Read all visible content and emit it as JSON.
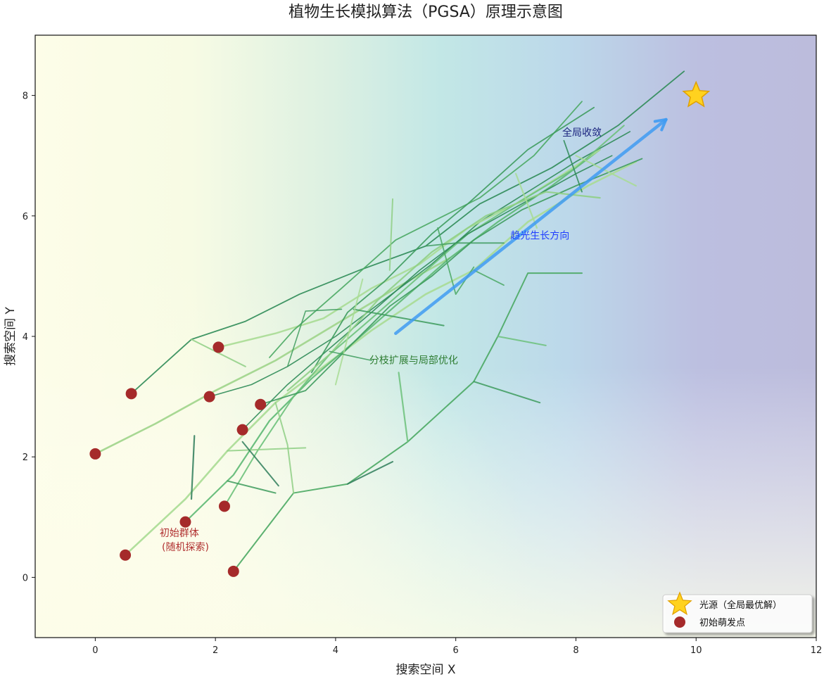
{
  "chart_data": {
    "type": "line",
    "title": "植物生长模拟算法（PGSA）原理示意图",
    "xlabel": "搜索空间 X",
    "ylabel": "搜索空间 Y",
    "xlim": [
      -1,
      12
    ],
    "ylim": [
      -1,
      9
    ],
    "xticks": [
      "0",
      "2",
      "4",
      "6",
      "8",
      "10",
      "12"
    ],
    "yticks": [
      "0",
      "2",
      "4",
      "6",
      "8"
    ],
    "xtick_values": [
      0,
      2,
      4,
      6,
      8,
      10,
      12
    ],
    "ytick_values": [
      0,
      2,
      4,
      6,
      8
    ],
    "grid": false,
    "legend_position": "bottom-right",
    "legend": [
      {
        "label": "光源（全局最优解）",
        "marker": "star",
        "color": "#FFD21F"
      },
      {
        "label": "初始萌发点",
        "marker": "circle",
        "color": "#A52A2A"
      }
    ],
    "light_source": {
      "x": 10,
      "y": 8
    },
    "seeds": [
      {
        "x": 0.0,
        "y": 2.05
      },
      {
        "x": 0.6,
        "y": 3.05
      },
      {
        "x": 0.5,
        "y": 0.37
      },
      {
        "x": 1.5,
        "y": 0.92
      },
      {
        "x": 1.9,
        "y": 3.0
      },
      {
        "x": 2.05,
        "y": 3.82
      },
      {
        "x": 2.15,
        "y": 1.18
      },
      {
        "x": 2.3,
        "y": 0.1
      },
      {
        "x": 2.45,
        "y": 2.45
      },
      {
        "x": 2.75,
        "y": 2.87
      }
    ],
    "branches": [
      {
        "points": [
          [
            0.0,
            2.05
          ],
          [
            1.0,
            2.55
          ],
          [
            2.0,
            3.1
          ],
          [
            3.0,
            3.6
          ],
          [
            4.0,
            4.2
          ],
          [
            5.0,
            4.8
          ],
          [
            5.9,
            5.3
          ]
        ],
        "color": "#9ed48a",
        "width": 2.6
      },
      {
        "points": [
          [
            0.6,
            3.05
          ],
          [
            1.6,
            3.95
          ],
          [
            2.5,
            4.25
          ],
          [
            3.4,
            4.7
          ],
          [
            4.4,
            5.1
          ],
          [
            5.5,
            5.5
          ],
          [
            6.4,
            6.2
          ],
          [
            7.6,
            6.8
          ],
          [
            8.7,
            7.5
          ],
          [
            9.8,
            8.4
          ]
        ],
        "color": "#2e8b57",
        "width": 1.8
      },
      {
        "points": [
          [
            0.5,
            0.37
          ],
          [
            1.5,
            1.3
          ],
          [
            2.2,
            2.1
          ],
          [
            3.0,
            2.9
          ],
          [
            3.8,
            3.5
          ],
          [
            4.6,
            4.1
          ],
          [
            5.5,
            4.7
          ],
          [
            6.3,
            5.1
          ],
          [
            7.2,
            5.9
          ],
          [
            8.2,
            6.5
          ],
          [
            9.0,
            6.9
          ]
        ],
        "color": "#a8dc94",
        "width": 2.6
      },
      {
        "points": [
          [
            1.5,
            0.92
          ],
          [
            2.3,
            1.7
          ],
          [
            2.9,
            2.6
          ],
          [
            3.6,
            3.3
          ],
          [
            4.3,
            3.9
          ],
          [
            5.1,
            4.6
          ],
          [
            5.9,
            5.3
          ],
          [
            6.7,
            5.9
          ],
          [
            7.6,
            6.5
          ],
          [
            8.4,
            7.1
          ]
        ],
        "color": "#5cb873",
        "width": 2.2
      },
      {
        "points": [
          [
            1.9,
            3.0
          ],
          [
            2.6,
            3.2
          ],
          [
            3.2,
            3.5
          ],
          [
            4.0,
            4.0
          ],
          [
            4.8,
            4.6
          ],
          [
            5.6,
            5.2
          ],
          [
            6.4,
            5.9
          ],
          [
            7.2,
            6.4
          ],
          [
            8.0,
            6.9
          ],
          [
            8.9,
            7.4
          ]
        ],
        "color": "#2e8b57",
        "width": 1.6
      },
      {
        "points": [
          [
            2.05,
            3.82
          ],
          [
            3.0,
            4.05
          ],
          [
            3.8,
            4.3
          ],
          [
            4.6,
            4.8
          ],
          [
            5.4,
            5.2
          ],
          [
            6.2,
            5.8
          ],
          [
            7.0,
            6.2
          ],
          [
            7.8,
            6.7
          ],
          [
            8.4,
            7.1
          ]
        ],
        "color": "#a8dc94",
        "width": 2.4
      },
      {
        "points": [
          [
            2.15,
            1.18
          ],
          [
            2.7,
            2.1
          ],
          [
            3.3,
            3.0
          ],
          [
            3.9,
            3.7
          ],
          [
            4.6,
            4.3
          ],
          [
            5.4,
            5.0
          ],
          [
            6.2,
            5.7
          ],
          [
            7.0,
            6.2
          ],
          [
            8.0,
            6.8
          ],
          [
            8.8,
            7.5
          ]
        ],
        "color": "#6cc17a",
        "width": 2.0
      },
      {
        "points": [
          [
            2.3,
            0.1
          ],
          [
            3.3,
            1.4
          ],
          [
            4.2,
            1.55
          ],
          [
            5.2,
            2.25
          ],
          [
            6.3,
            3.25
          ],
          [
            6.7,
            4.0
          ],
          [
            7.2,
            5.05
          ],
          [
            8.1,
            5.05
          ]
        ],
        "color": "#4aa863",
        "width": 2.0
      },
      {
        "points": [
          [
            2.45,
            2.45
          ],
          [
            3.2,
            3.2
          ],
          [
            3.9,
            3.8
          ],
          [
            4.6,
            4.4
          ],
          [
            5.4,
            5.1
          ],
          [
            6.2,
            5.7
          ],
          [
            7.1,
            6.2
          ],
          [
            8.0,
            6.7
          ],
          [
            8.6,
            7.0
          ]
        ],
        "color": "#2e8b57",
        "width": 1.6
      },
      {
        "points": [
          [
            2.75,
            2.87
          ],
          [
            3.5,
            3.1
          ],
          [
            4.2,
            3.8
          ],
          [
            4.9,
            4.5
          ],
          [
            5.6,
            5.0
          ],
          [
            6.3,
            5.6
          ],
          [
            7.1,
            6.1
          ],
          [
            8.0,
            6.5
          ],
          [
            9.1,
            6.95
          ]
        ],
        "color": "#3d9b5d",
        "width": 1.8
      },
      {
        "points": [
          [
            2.9,
            3.65
          ],
          [
            3.3,
            4.1
          ],
          [
            4.1,
            4.8
          ],
          [
            5.0,
            5.6
          ],
          [
            5.8,
            6.0
          ],
          [
            6.4,
            6.3
          ],
          [
            7.3,
            7.0
          ],
          [
            8.1,
            7.9
          ]
        ],
        "color": "#4aa863",
        "width": 1.8
      },
      {
        "points": [
          [
            3.6,
            3.4
          ],
          [
            4.2,
            4.4
          ],
          [
            4.8,
            4.9
          ],
          [
            5.6,
            5.7
          ],
          [
            6.2,
            6.2
          ],
          [
            7.2,
            7.1
          ],
          [
            8.3,
            7.8
          ]
        ],
        "color": "#3d9b5d",
        "width": 1.8
      },
      {
        "points": [
          [
            3.2,
            3.1
          ],
          [
            3.9,
            3.7
          ],
          [
            4.7,
            4.6
          ],
          [
            5.6,
            5.4
          ],
          [
            6.5,
            6.0
          ],
          [
            7.5,
            6.4
          ],
          [
            8.4,
            6.3
          ]
        ],
        "color": "#8fcf85",
        "width": 2.2
      }
    ],
    "twigs": [
      {
        "points": [
          [
            1.6,
            3.95
          ],
          [
            2.5,
            3.5
          ]
        ],
        "color": "#8fcf85",
        "width": 2.0
      },
      {
        "points": [
          [
            2.2,
            2.1
          ],
          [
            3.5,
            2.15
          ]
        ],
        "color": "#8fcf85",
        "width": 2.0
      },
      {
        "points": [
          [
            1.6,
            1.3
          ],
          [
            1.65,
            2.35
          ]
        ],
        "color": "#2e7d5b",
        "width": 2.2
      },
      {
        "points": [
          [
            2.2,
            1.6
          ],
          [
            3.0,
            1.4
          ]
        ],
        "color": "#3d9b5d",
        "width": 2.0
      },
      {
        "points": [
          [
            2.45,
            2.25
          ],
          [
            3.05,
            1.52
          ]
        ],
        "color": "#2e7d5b",
        "width": 2.0
      },
      {
        "points": [
          [
            3.0,
            2.9
          ],
          [
            3.2,
            2.2
          ],
          [
            3.3,
            1.4
          ]
        ],
        "color": "#8fcf85",
        "width": 2.0
      },
      {
        "points": [
          [
            4.2,
            1.55
          ],
          [
            4.95,
            1.92
          ]
        ],
        "color": "#2e7d5b",
        "width": 2.0
      },
      {
        "points": [
          [
            5.2,
            2.25
          ],
          [
            5.05,
            3.4
          ]
        ],
        "color": "#6cc17a",
        "width": 2.2
      },
      {
        "points": [
          [
            6.3,
            3.25
          ],
          [
            7.4,
            2.9
          ]
        ],
        "color": "#3d9b5d",
        "width": 2.0
      },
      {
        "points": [
          [
            6.7,
            4.0
          ],
          [
            7.5,
            3.85
          ]
        ],
        "color": "#6cc17a",
        "width": 2.0
      },
      {
        "points": [
          [
            3.2,
            3.5
          ],
          [
            3.5,
            4.42
          ],
          [
            4.1,
            4.45
          ]
        ],
        "color": "#3d9b5d",
        "width": 1.6
      },
      {
        "points": [
          [
            4.3,
            4.45
          ],
          [
            5.8,
            4.18
          ]
        ],
        "color": "#3d9b5d",
        "width": 2.0
      },
      {
        "points": [
          [
            4.9,
            5.1
          ],
          [
            4.95,
            6.28
          ]
        ],
        "color": "#8fcf85",
        "width": 2.0
      },
      {
        "points": [
          [
            5.5,
            5.5
          ],
          [
            6.0,
            5.55
          ],
          [
            6.8,
            5.55
          ]
        ],
        "color": "#3d9b5d",
        "width": 1.8
      },
      {
        "points": [
          [
            5.7,
            5.8
          ],
          [
            6.0,
            4.7
          ],
          [
            6.3,
            5.15
          ]
        ],
        "color": "#4aa863",
        "width": 1.8
      },
      {
        "points": [
          [
            6.3,
            5.1
          ],
          [
            6.8,
            4.85
          ]
        ],
        "color": "#4aa863",
        "width": 1.8
      },
      {
        "points": [
          [
            7.0,
            6.7
          ],
          [
            7.35,
            5.8
          ]
        ],
        "color": "#a8dc94",
        "width": 2.2
      },
      {
        "points": [
          [
            7.8,
            7.25
          ],
          [
            8.1,
            6.4
          ]
        ],
        "color": "#2e8b57",
        "width": 1.8
      },
      {
        "points": [
          [
            8.0,
            7.0
          ],
          [
            9.0,
            6.5
          ]
        ],
        "color": "#a8dc94",
        "width": 2.2
      },
      {
        "points": [
          [
            4.0,
            3.2
          ],
          [
            4.45,
            4.95
          ]
        ],
        "color": "#a8dc94",
        "width": 2.0
      },
      {
        "points": [
          [
            3.9,
            3.75
          ],
          [
            4.6,
            3.6
          ]
        ],
        "color": "#3d9b5d",
        "width": 1.6
      }
    ],
    "annotations": [
      {
        "text": "初始群体",
        "x": 1.4,
        "y": 0.68,
        "color": "#B03030"
      },
      {
        "text": "(随机探索)",
        "x": 1.5,
        "y": 0.45,
        "color": "#B03030"
      },
      {
        "text": "分枝扩展与局部优化",
        "x": 5.3,
        "y": 3.55,
        "color": "#2E7D32"
      },
      {
        "text": "趋光生长方向",
        "x": 7.4,
        "y": 5.62,
        "color": "#1E3CFF"
      },
      {
        "text": "全局收敛",
        "x": 8.1,
        "y": 7.33,
        "color": "#1A237E"
      }
    ],
    "arrow": {
      "from": [
        5.0,
        4.05
      ],
      "to": [
        9.5,
        7.6
      ],
      "color": "#3f9bf2"
    }
  }
}
